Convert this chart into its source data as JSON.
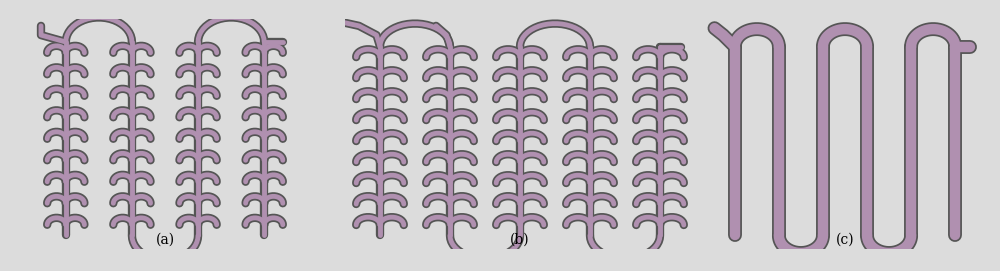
{
  "fig_width": 10.0,
  "fig_height": 2.71,
  "bg_color": "#dcdcdc",
  "panel_bg": "#f5f5f5",
  "channel_outer": "#555555",
  "channel_inner": "#b090b0",
  "lw_outer": 6,
  "lw_inner": 3.5,
  "labels": [
    "(a)",
    "(b)",
    "(c)"
  ],
  "label_fontsize": 10,
  "border_color": "#aaaaaa"
}
